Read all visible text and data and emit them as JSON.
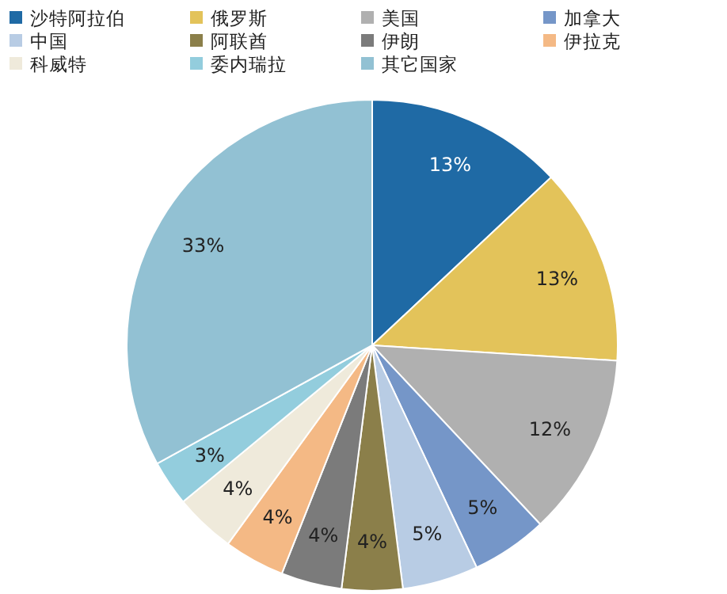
{
  "chart_data": {
    "type": "pie",
    "legend": "top",
    "categories": [
      "沙特阿拉伯",
      "俄罗斯",
      "美国",
      "加拿大",
      "中国",
      "阿联酋",
      "伊朗",
      "伊拉克",
      "科威特",
      "委内瑞拉",
      "其它国家"
    ],
    "values": [
      13,
      13,
      12,
      5,
      5,
      4,
      4,
      4,
      4,
      3,
      33
    ],
    "value_labels": [
      "13%",
      "13%",
      "12%",
      "5%",
      "5%",
      "4%",
      "4%",
      "4%",
      "4%",
      "3%",
      "33%"
    ],
    "colors": [
      "#1f6aa5",
      "#e3c35a",
      "#b0b0b0",
      "#7596c8",
      "#b8cce4",
      "#8b7f4a",
      "#7b7b7b",
      "#f4b985",
      "#efeadb",
      "#93cddd",
      "#92c1d3"
    ]
  }
}
